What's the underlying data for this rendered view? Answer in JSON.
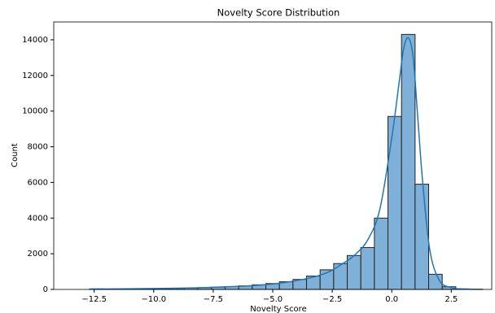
{
  "chart_data": {
    "type": "histogram",
    "title": "Novelty Score Distribution",
    "x_label": "Novelty Score",
    "y_label": "Count",
    "bins": [
      -12.7,
      -12.13,
      -11.56,
      -10.99,
      -10.42,
      -9.85,
      -9.28,
      -8.71,
      -8.14,
      -7.57,
      -7.0,
      -6.43,
      -5.86,
      -5.29,
      -4.72,
      -4.15,
      -3.58,
      -3.01,
      -2.44,
      -1.87,
      -1.3,
      -0.73,
      -0.16,
      0.41,
      0.98,
      1.55,
      2.12,
      2.69,
      3.26,
      3.83
    ],
    "values": [
      10,
      15,
      20,
      30,
      40,
      50,
      60,
      80,
      100,
      130,
      160,
      200,
      260,
      330,
      430,
      560,
      750,
      1100,
      1450,
      1900,
      2350,
      4000,
      9700,
      14300,
      5900,
      850,
      150,
      30,
      5
    ],
    "color": "#7fb0d8",
    "edge_color": "#222222",
    "kde": {
      "color": "#1f77b4",
      "x": [
        -12.7,
        -10,
        -7.5,
        -5,
        -3,
        -2,
        -1.5,
        -1,
        -0.5,
        0,
        0.3,
        0.5,
        0.7,
        0.9,
        1.1,
        1.3,
        1.6,
        2,
        2.5,
        3,
        3.8
      ],
      "values": [
        20,
        50,
        120,
        300,
        800,
        1500,
        2000,
        2800,
        4500,
        8500,
        11500,
        13500,
        14100,
        13000,
        9500,
        6000,
        2200,
        500,
        100,
        20,
        5
      ]
    },
    "xlim": [
      -14.2,
      4.2
    ],
    "ylim": [
      0,
      15000
    ],
    "xticks": [
      {
        "value": -12.5,
        "label": "−12.5"
      },
      {
        "value": -10,
        "label": "−10.0"
      },
      {
        "value": -7.5,
        "label": "−7.5"
      },
      {
        "value": -5,
        "label": "−5.0"
      },
      {
        "value": -2.5,
        "label": "−2.5"
      },
      {
        "value": 0,
        "label": "0.0"
      },
      {
        "value": 2.5,
        "label": "2.5"
      }
    ],
    "yticks": [
      0,
      2000,
      4000,
      6000,
      8000,
      10000,
      12000,
      14000
    ]
  }
}
